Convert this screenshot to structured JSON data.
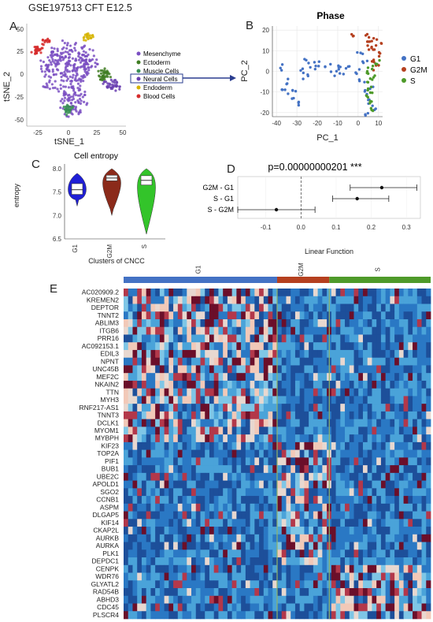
{
  "figure_title": "GSE197513 CFT E12.5",
  "panels": {
    "A": {
      "letter": "A",
      "xlabel": "tSNE_1",
      "ylabel": "tSNE_2",
      "xticks": [
        "-25",
        "0",
        "25",
        "50"
      ],
      "yticks": [
        "50",
        "25",
        "0",
        "-25",
        "-50"
      ],
      "legend": [
        {
          "label": "Mesenchyme",
          "color": "#7a4fc2"
        },
        {
          "label": "Ectoderm",
          "color": "#3f7d22"
        },
        {
          "label": "Muscle Cells",
          "color": "#3a8f55"
        },
        {
          "label": "Neural Cells",
          "color": "#6a3fb0"
        },
        {
          "label": "Endoderm",
          "color": "#d6b400"
        },
        {
          "label": "Blood Cells",
          "color": "#d62c2c"
        }
      ]
    },
    "B": {
      "letter": "B",
      "title": "Phase",
      "xlabel": "PC_1",
      "ylabel": "PC_2",
      "xticks": [
        "-40",
        "-30",
        "-20",
        "-10",
        "0",
        "10"
      ],
      "yticks": [
        "20",
        "10",
        "0",
        "-10",
        "-20"
      ],
      "legend": [
        {
          "label": "G1",
          "color": "#4472c4"
        },
        {
          "label": "G2M",
          "color": "#b5401f"
        },
        {
          "label": "S",
          "color": "#4e9a2a"
        }
      ]
    },
    "C": {
      "letter": "C",
      "title": "Cell entropy",
      "ylabel": "entropy",
      "xlabel": "Clusters of CNCC",
      "yticks": [
        "8.0",
        "7.5",
        "7.0",
        "6.5"
      ],
      "groups": [
        {
          "label": "G1",
          "color": "#1f1fd6"
        },
        {
          "label": "G2M",
          "color": "#8b2a1a"
        },
        {
          "label": "S",
          "color": "#33c42a"
        }
      ]
    },
    "D": {
      "letter": "D",
      "title": "p=0.00000000201 ***",
      "xlabel": "Linear Function",
      "xticks": [
        "-0.1",
        "0.0",
        "0.1",
        "0.2",
        "0.3"
      ],
      "rows": [
        "G2M - G1",
        "S - G1",
        "S - G2M"
      ]
    },
    "E": {
      "letter": "E",
      "column_groups": [
        {
          "label": "G1",
          "color": "#4472c4"
        },
        {
          "label": "G2M",
          "color": "#b5401f"
        },
        {
          "label": "S",
          "color": "#4e9a2a"
        }
      ],
      "genes": [
        "AC020909.2",
        "KREMEN2",
        "DEPTOR",
        "TNNT2",
        "ABLIM3",
        "ITGB6",
        "PRR16",
        "AC092153.1",
        "EDIL3",
        "NPNT",
        "UNC45B",
        "MEF2C",
        "NKAIN2",
        "TTN",
        "MYH3",
        "RNF217-AS1",
        "TNNT3",
        "DCLK1",
        "MYOM1",
        "MYBPH",
        "KIF23",
        "TOP2A",
        "PIF1",
        "BUB1",
        "UBE2C",
        "APOLD1",
        "SGO2",
        "CCNB1",
        "ASPM",
        "DLGAP5",
        "KIF14",
        "CKAP2L",
        "AURKB",
        "AURKA",
        "PLK1",
        "DEPDC1",
        "CENPK",
        "WDR76",
        "GLYATL2",
        "RAD54B",
        "ABHD3",
        "CDC45",
        "PLSCR4"
      ]
    }
  },
  "chart_data": [
    {
      "type": "scatter",
      "panel": "A",
      "xlabel": "tSNE_1",
      "ylabel": "tSNE_2",
      "xlim": [
        -40,
        60
      ],
      "ylim": [
        -55,
        55
      ],
      "series": [
        {
          "name": "Mesenchyme",
          "x": [
            -20,
            -10,
            0,
            5,
            10,
            15,
            -5,
            -15,
            20,
            25,
            8,
            -2,
            12,
            18,
            -8,
            3,
            6,
            -12,
            14,
            22,
            0,
            10,
            -18,
            5,
            16
          ],
          "y": [
            10,
            15,
            20,
            5,
            0,
            10,
            -5,
            5,
            15,
            10,
            -20,
            -15,
            -10,
            25,
            25,
            30,
            12,
            18,
            -25,
            20,
            -30,
            -35,
            -8,
            -40,
            3
          ]
        },
        {
          "name": "Ectoderm",
          "x": [
            35,
            38,
            40,
            42,
            36
          ],
          "y": [
            2,
            -2,
            4,
            0,
            -4
          ]
        },
        {
          "name": "Muscle Cells",
          "x": [
            0,
            2,
            4,
            1
          ],
          "y": [
            -35,
            -38,
            -36,
            -40
          ]
        },
        {
          "name": "Neural Cells",
          "x": [
            40,
            44,
            48,
            52,
            46
          ],
          "y": [
            -10,
            -12,
            -8,
            -14,
            -11
          ]
        },
        {
          "name": "Endoderm",
          "x": [
            20,
            22,
            24
          ],
          "y": [
            40,
            42,
            41
          ]
        },
        {
          "name": "Blood Cells",
          "x": [
            -33,
            -30,
            -27,
            -22,
            -20,
            -28
          ],
          "y": [
            25,
            28,
            30,
            35,
            37,
            26
          ]
        }
      ]
    },
    {
      "type": "scatter",
      "panel": "B",
      "title": "Phase",
      "xlabel": "PC_1",
      "ylabel": "PC_2",
      "xlim": [
        -42,
        12
      ],
      "ylim": [
        -22,
        22
      ],
      "series": [
        {
          "name": "G1",
          "x": [
            -38,
            -35,
            -32,
            -30,
            -28,
            -25,
            -20,
            -15,
            -10,
            -5,
            0,
            2,
            4,
            6,
            5,
            3,
            7,
            -33,
            -36,
            -26,
            -22,
            -12,
            -8,
            1,
            8
          ],
          "y": [
            2,
            -5,
            -10,
            -15,
            0,
            5,
            4,
            3,
            2,
            1,
            0,
            -5,
            -10,
            -15,
            -20,
            5,
            -8,
            -12,
            -8,
            -3,
            2,
            -1,
            0,
            10,
            -18
          ]
        },
        {
          "name": "G2M",
          "x": [
            5,
            6,
            7,
            8,
            9,
            10,
            4,
            8,
            11,
            -2
          ],
          "y": [
            15,
            12,
            10,
            5,
            2,
            14,
            18,
            16,
            8,
            18
          ]
        },
        {
          "name": "S",
          "x": [
            4,
            5,
            6,
            7,
            8,
            6,
            5,
            7,
            9,
            4
          ],
          "y": [
            0,
            -5,
            -10,
            -15,
            -3,
            2,
            -8,
            -18,
            4,
            -12
          ]
        }
      ]
    },
    {
      "type": "violin",
      "panel": "C",
      "title": "Cell entropy",
      "ylabel": "entropy",
      "xlabel": "Clusters of CNCC",
      "ylim": [
        6.5,
        8.1
      ],
      "categories": [
        "G1",
        "G2M",
        "S"
      ],
      "medians": [
        7.55,
        7.8,
        7.75
      ],
      "q1": [
        7.45,
        7.74,
        7.65
      ],
      "q3": [
        7.68,
        7.86,
        7.85
      ],
      "min": [
        7.2,
        7.0,
        6.6
      ],
      "max": [
        7.9,
        8.0,
        8.0
      ]
    },
    {
      "type": "forest",
      "panel": "D",
      "title": "p=0.00000000201 ***",
      "xlabel": "Linear Function",
      "xlim": [
        -0.18,
        0.34
      ],
      "categories": [
        "G2M - G1",
        "S - G1",
        "S - G2M"
      ],
      "estimates": [
        0.23,
        0.16,
        -0.07
      ],
      "lower": [
        0.14,
        0.09,
        -0.18
      ],
      "upper": [
        0.33,
        0.25,
        0.04
      ]
    },
    {
      "type": "heatmap",
      "panel": "E",
      "groups": [
        "G1",
        "G2M",
        "S"
      ],
      "group_fractions": [
        0.5,
        0.17,
        0.33
      ],
      "gene_modules": [
        {
          "genes_from": 0,
          "genes_to": 19,
          "high_in": "G1"
        },
        {
          "genes_from": 20,
          "genes_to": 35,
          "high_in": "G2M"
        },
        {
          "genes_from": 36,
          "genes_to": 42,
          "high_in": "S"
        }
      ]
    }
  ]
}
